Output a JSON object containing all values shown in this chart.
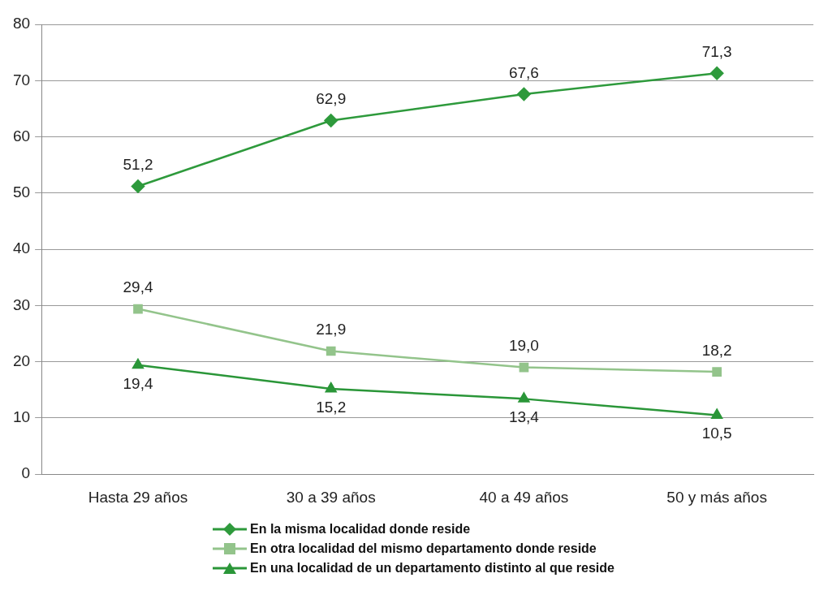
{
  "chart_data": {
    "type": "line",
    "categories": [
      "Hasta 29 años",
      "30 a 39 años",
      "40 a 49 años",
      "50 y más años"
    ],
    "series": [
      {
        "name": "En la misma localidad donde reside",
        "color": "#2e9a3c",
        "marker": "diamond",
        "values": [
          51.2,
          62.9,
          67.6,
          71.3
        ],
        "value_labels": [
          "51,2",
          "62,9",
          "67,6",
          "71,3"
        ]
      },
      {
        "name": "En otra localidad del mismo departamento donde reside",
        "color": "#93c48b",
        "marker": "square",
        "values": [
          29.4,
          21.9,
          19.0,
          18.2
        ],
        "value_labels": [
          "29,4",
          "21,9",
          "19,0",
          "18,2"
        ]
      },
      {
        "name": "En una localidad de un departamento distinto al que reside",
        "color": "#2a9638",
        "marker": "triangle",
        "values": [
          19.4,
          15.2,
          13.4,
          10.5
        ],
        "value_labels": [
          "19,4",
          "15,2",
          "13,4",
          "10,5"
        ]
      }
    ],
    "ylim": [
      0,
      80
    ],
    "yticks": [
      0,
      10,
      20,
      30,
      40,
      50,
      60,
      70,
      80
    ],
    "grid": "y",
    "legend": "bottom",
    "line_style": "solid"
  }
}
